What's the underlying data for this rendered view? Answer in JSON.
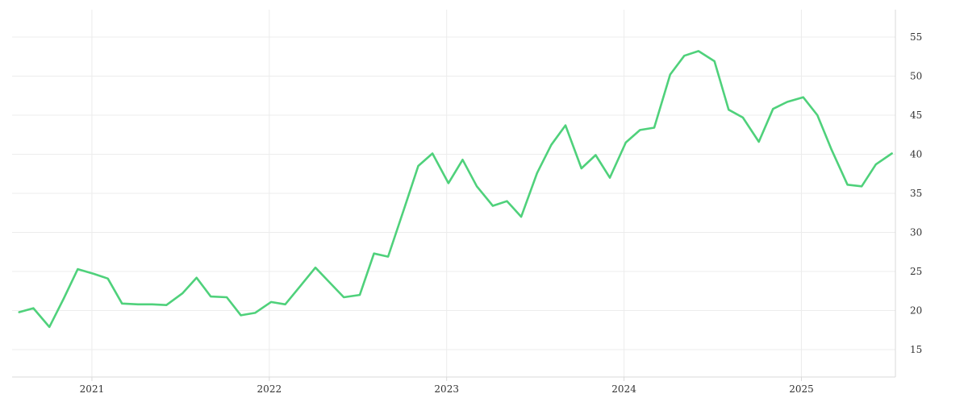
{
  "colors": {
    "line": "#4fd17b",
    "grid": "#ececec",
    "axis": "#d9d9d9",
    "text": "#333333"
  },
  "chart_data": {
    "type": "line",
    "title": "",
    "xlabel": "",
    "ylabel": "",
    "grid": true,
    "legend": "none",
    "y_axis_side": "right",
    "x_range": [
      2020.55,
      2025.53
    ],
    "y_range": [
      11.5,
      58.5
    ],
    "x_ticks": [
      {
        "value": 2021,
        "label": "2021"
      },
      {
        "value": 2022,
        "label": "2022"
      },
      {
        "value": 2023,
        "label": "2023"
      },
      {
        "value": 2024,
        "label": "2024"
      },
      {
        "value": 2025,
        "label": "2025"
      }
    ],
    "y_ticks": [
      {
        "value": 15,
        "label": "15"
      },
      {
        "value": 20,
        "label": "20"
      },
      {
        "value": 25,
        "label": "25"
      },
      {
        "value": 30,
        "label": "30"
      },
      {
        "value": 35,
        "label": "35"
      },
      {
        "value": 40,
        "label": "40"
      },
      {
        "value": 45,
        "label": "45"
      },
      {
        "value": 50,
        "label": "50"
      },
      {
        "value": 55,
        "label": "55"
      }
    ],
    "series": [
      {
        "x": [
          2020.59,
          2020.67,
          2020.76,
          2020.84,
          2020.92,
          2021.01,
          2021.09,
          2021.17,
          2021.26,
          2021.34,
          2021.42,
          2021.51,
          2021.59,
          2021.67,
          2021.76,
          2021.84,
          2021.92,
          2022.01,
          2022.09,
          2022.17,
          2022.26,
          2022.34,
          2022.42,
          2022.51,
          2022.59,
          2022.67,
          2022.76,
          2022.84,
          2022.92,
          2023.01,
          2023.09,
          2023.17,
          2023.26,
          2023.34,
          2023.42,
          2023.51,
          2023.59,
          2023.67,
          2023.76,
          2023.84,
          2023.92,
          2024.01,
          2024.09,
          2024.17,
          2024.26,
          2024.34,
          2024.42,
          2024.51,
          2024.59,
          2024.67,
          2024.76,
          2024.84,
          2024.92,
          2025.01,
          2025.09,
          2025.17,
          2025.26,
          2025.34,
          2025.42,
          2025.51
        ],
        "values": [
          19.8,
          20.3,
          17.9,
          21.5,
          25.3,
          24.7,
          24.1,
          20.9,
          20.8,
          20.8,
          20.7,
          22.2,
          24.2,
          21.8,
          21.7,
          19.4,
          19.7,
          21.1,
          20.8,
          23.0,
          25.5,
          23.6,
          21.7,
          22.0,
          27.3,
          26.9,
          33.0,
          38.5,
          40.1,
          36.3,
          39.3,
          35.9,
          33.4,
          34.0,
          32.0,
          37.6,
          41.2,
          43.7,
          38.2,
          39.9,
          37.0,
          41.5,
          43.1,
          43.4,
          50.2,
          52.6,
          53.2,
          51.9,
          45.7,
          44.7,
          41.6,
          45.8,
          46.7,
          47.3,
          45.0,
          40.6,
          36.1,
          35.9,
          38.7,
          40.1
        ]
      }
    ]
  }
}
